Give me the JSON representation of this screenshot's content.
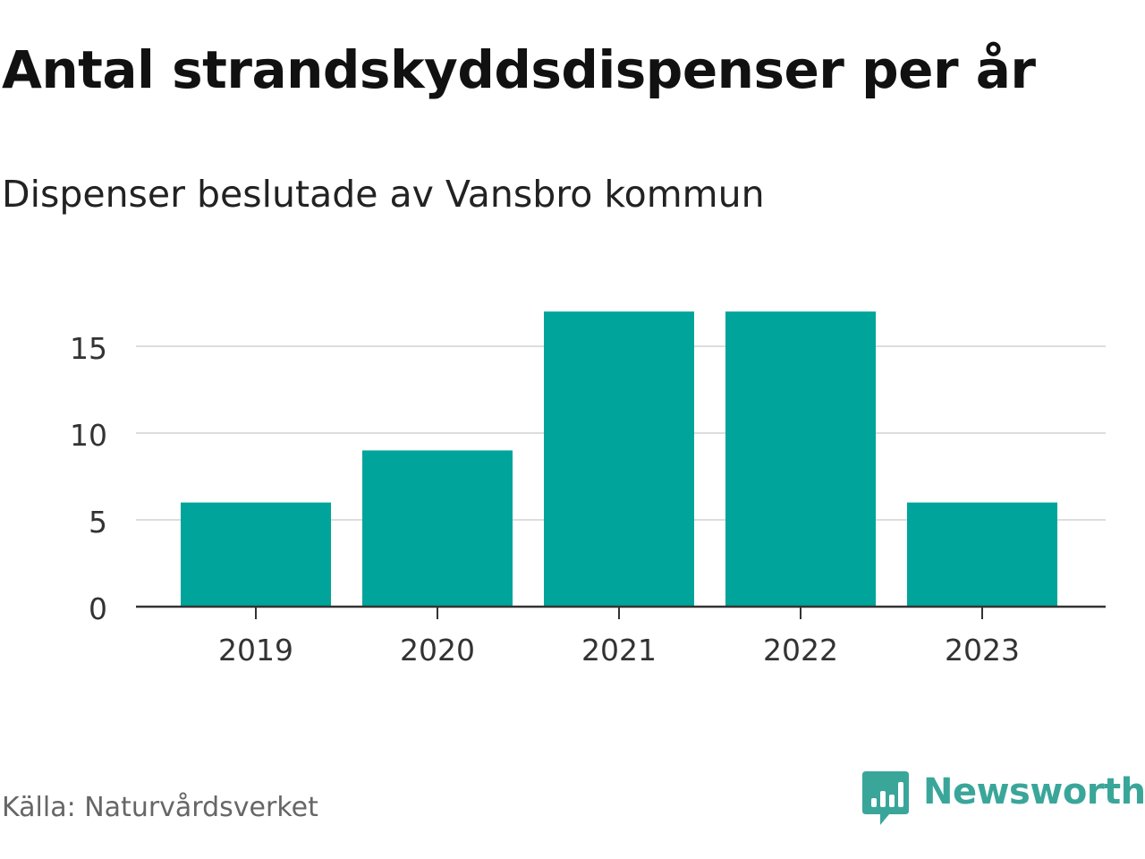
{
  "header": {
    "title": "Antal strandskyddsdispenser per år",
    "subtitle": "Dispenser beslutade av Vansbro kommun"
  },
  "footer": {
    "source": "Källa: Naturvårdsverket",
    "brand": "Newsworthy",
    "brand_icon": "newsworthy-logo-icon"
  },
  "colors": {
    "bar": "#00a49a",
    "grid": "#dddddd",
    "axis": "#333333",
    "tick_text": "#333333",
    "brand": "#3aa69a"
  },
  "chart_data": {
    "type": "bar",
    "title": "Antal strandskyddsdispenser per år",
    "subtitle": "Dispenser beslutade av Vansbro kommun",
    "xlabel": "",
    "ylabel": "",
    "categories": [
      "2019",
      "2020",
      "2021",
      "2022",
      "2023"
    ],
    "values": [
      6,
      9,
      17,
      17,
      6
    ],
    "ylim": [
      0,
      18
    ],
    "yticks": [
      0,
      5,
      10,
      15
    ],
    "grid": true,
    "legend": "none"
  }
}
